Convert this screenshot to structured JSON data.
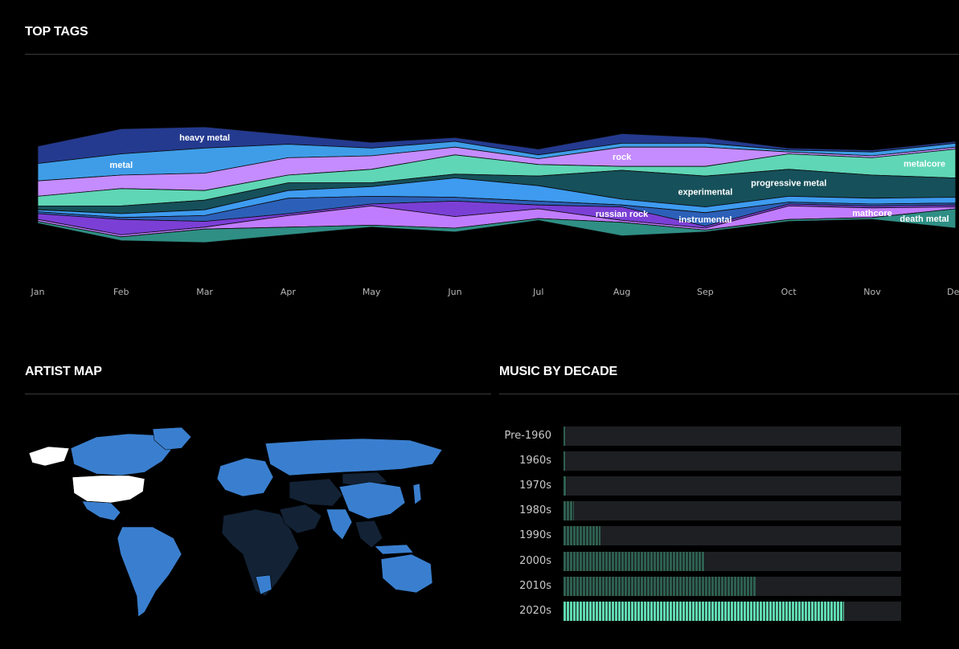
{
  "sections": {
    "top_tags": "TOP TAGS",
    "artist_map": "ARTIST MAP",
    "music_by_decade": "MUSIC BY DECADE"
  },
  "colors": {
    "background": "#000000",
    "decade_fill": "#2d5f4f",
    "decade_highlight": "#5fd9b0",
    "decade_track": "#1e1f22",
    "map_highlight": "#ffffff",
    "map_active": "#3a7fcf",
    "map_inactive": "#132235"
  },
  "chart_data": [
    {
      "type": "area",
      "title": "TOP TAGS",
      "layout": "streamgraph",
      "categories": [
        "Jan",
        "Feb",
        "Mar",
        "Apr",
        "May",
        "Jun",
        "Jul",
        "Aug",
        "Sep",
        "Oct",
        "Nov",
        "Dec"
      ],
      "series": [
        {
          "name": "heavy metal",
          "color": "#243a8f",
          "values": [
            18,
            26,
            22,
            10,
            6,
            4,
            6,
            10,
            6,
            2,
            2,
            2
          ]
        },
        {
          "name": "metal",
          "color": "#3f9de8",
          "values": [
            18,
            22,
            26,
            14,
            8,
            6,
            4,
            4,
            4,
            2,
            4,
            4
          ]
        },
        {
          "name": "rock",
          "color": "#c48cff",
          "values": [
            16,
            14,
            18,
            18,
            14,
            8,
            6,
            20,
            20,
            2,
            2,
            2
          ]
        },
        {
          "name": "metalcore",
          "color": "#5fd6b6",
          "values": [
            10,
            18,
            10,
            8,
            14,
            20,
            12,
            4,
            10,
            16,
            18,
            30
          ]
        },
        {
          "name": "experimental",
          "color": "#16505a",
          "values": [
            4,
            8,
            10,
            8,
            4,
            4,
            10,
            30,
            32,
            28,
            24,
            20
          ]
        },
        {
          "name": "progressive metal",
          "color": "#3e9bf0",
          "values": [
            2,
            4,
            6,
            8,
            10,
            20,
            16,
            6,
            6,
            6,
            6,
            6
          ]
        },
        {
          "name": "instrumental",
          "color": "#2c60b8",
          "values": [
            2,
            2,
            6,
            16,
            8,
            4,
            4,
            2,
            14,
            2,
            2,
            2
          ]
        },
        {
          "name": "russian rock",
          "color": "#7b3fd6",
          "values": [
            6,
            16,
            6,
            2,
            2,
            16,
            4,
            14,
            2,
            2,
            2,
            2
          ]
        },
        {
          "name": "mathcore",
          "color": "#c07cff",
          "values": [
            2,
            2,
            2,
            12,
            20,
            12,
            10,
            2,
            2,
            14,
            10,
            2
          ]
        },
        {
          "name": "death metal",
          "color": "#2f8f85",
          "values": [
            2,
            4,
            14,
            8,
            2,
            4,
            2,
            14,
            2,
            2,
            2,
            20
          ]
        }
      ],
      "label_positions": [
        {
          "text": "metal",
          "series": "metal",
          "month": "Feb"
        },
        {
          "text": "heavy metal",
          "series": "heavy metal",
          "month": "Mar"
        },
        {
          "text": "rock",
          "series": "rock",
          "month": "Aug"
        },
        {
          "text": "metalcore",
          "series": "metalcore",
          "month": "Dec"
        },
        {
          "text": "experimental",
          "series": "experimental",
          "month": "Sep"
        },
        {
          "text": "progressive metal",
          "series": "experimental",
          "month": "Oct"
        },
        {
          "text": "instrumental",
          "series": "instrumental",
          "month": "Sep"
        },
        {
          "text": "russian rock",
          "series": "russian rock",
          "month": "Aug"
        },
        {
          "text": "mathcore",
          "series": "mathcore",
          "month": "Nov"
        },
        {
          "text": "death metal",
          "series": "death metal",
          "month": "Dec"
        }
      ]
    },
    {
      "type": "bar",
      "title": "MUSIC BY DECADE",
      "categories": [
        "Pre-1960",
        "1960s",
        "1970s",
        "1980s",
        "1990s",
        "2000s",
        "2010s",
        "2020s"
      ],
      "values": [
        0.5,
        0.5,
        1,
        3,
        11,
        42,
        57,
        83
      ],
      "xlim": [
        0,
        100
      ],
      "highlight": "2020s"
    }
  ],
  "map": {
    "highlighted_region": "United States",
    "active_regions": [
      "Canada",
      "Mexico",
      "Brazil",
      "Argentina",
      "Chile",
      "Peru",
      "Colombia",
      "Venezuela",
      "Russia",
      "China",
      "India",
      "Australia",
      "United Kingdom",
      "France",
      "Germany",
      "Spain",
      "Italy",
      "Norway",
      "Sweden",
      "Finland",
      "Japan",
      "South Korea",
      "Indonesia",
      "South Africa",
      "Turkey",
      "Iran",
      "Greenland"
    ]
  }
}
